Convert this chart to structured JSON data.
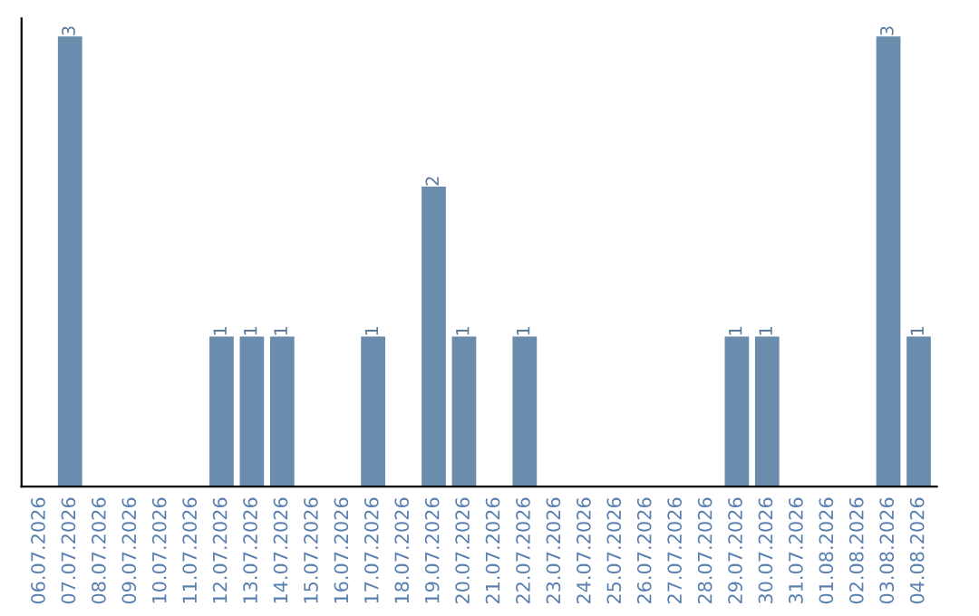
{
  "chart_data": {
    "type": "bar",
    "categories": [
      "06.07.2026",
      "07.07.2026",
      "08.07.2026",
      "09.07.2026",
      "10.07.2026",
      "11.07.2026",
      "12.07.2026",
      "13.07.2026",
      "14.07.2026",
      "15.07.2026",
      "16.07.2026",
      "17.07.2026",
      "18.07.2026",
      "19.07.2026",
      "20.07.2026",
      "21.07.2026",
      "22.07.2026",
      "23.07.2026",
      "24.07.2026",
      "25.07.2026",
      "26.07.2026",
      "27.07.2026",
      "28.07.2026",
      "29.07.2026",
      "30.07.2026",
      "31.07.2026",
      "01.08.2026",
      "02.08.2026",
      "03.08.2026",
      "04.08.2026"
    ],
    "values": [
      0,
      3,
      0,
      0,
      0,
      0,
      1,
      1,
      1,
      0,
      0,
      1,
      0,
      2,
      1,
      0,
      1,
      0,
      0,
      0,
      0,
      0,
      0,
      1,
      1,
      0,
      0,
      0,
      3,
      1
    ],
    "value_labels": [
      null,
      "3",
      null,
      null,
      null,
      null,
      "1",
      "1",
      "1",
      null,
      null,
      "1",
      null,
      "2",
      "1",
      null,
      "1",
      null,
      null,
      null,
      null,
      null,
      null,
      "1",
      "1",
      null,
      null,
      null,
      "3",
      "1"
    ],
    "color": "#6a8cad",
    "grid": false,
    "legend": false,
    "tick_labels": "x"
  }
}
